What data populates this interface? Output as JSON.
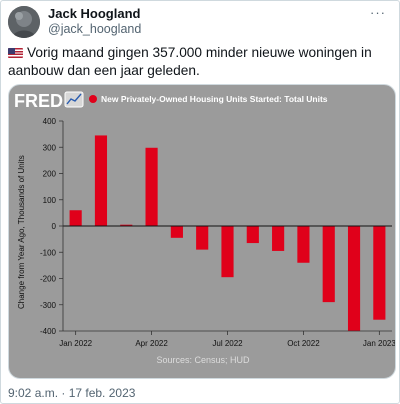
{
  "author": {
    "name": "Jack Hoogland",
    "handle": "@jack_hoogland",
    "avatar_icon": "profile-photo",
    "more_icon": "more-options-icon",
    "more_label": "···"
  },
  "tweet": {
    "flag_icon": "us-flag-icon",
    "text": "Vorig maand gingen 357.000 minder nieuwe woningen in aanbouw dan een jaar geleden."
  },
  "timestamp": "9:02 a.m. · 17 feb. 2023",
  "colors": {
    "chart_background": "#9b9b9b",
    "bar": "#e0001a",
    "fred_text": "#ffffff"
  },
  "chart_data": {
    "type": "bar",
    "brand": "FRED",
    "title": "New Privately-Owned Housing Units Started: Total Units",
    "ylabel": "Change from Year Ago, Thousands of Units",
    "xlabel": "",
    "source": "Sources: Census; HUD",
    "ylim": [
      -400,
      400
    ],
    "yticks": [
      400,
      300,
      200,
      100,
      0,
      -100,
      -200,
      -300,
      -400
    ],
    "categories": [
      "Jan 2022",
      "Feb 2022",
      "Mar 2022",
      "Apr 2022",
      "May 2022",
      "Jun 2022",
      "Jul 2022",
      "Aug 2022",
      "Sep 2022",
      "Oct 2022",
      "Nov 2022",
      "Dec 2022",
      "Jan 2023"
    ],
    "xtick_labels": [
      "Jan 2022",
      "Apr 2022",
      "Jul 2022",
      "Oct 2022",
      "Jan 2023"
    ],
    "xtick_indices": [
      0,
      3,
      6,
      9,
      12
    ],
    "values": [
      60,
      345,
      5,
      298,
      -45,
      -90,
      -195,
      -65,
      -95,
      -140,
      -290,
      -400,
      -357
    ],
    "series": [
      {
        "name": "New Privately-Owned Housing Units Started: Total Units",
        "values": [
          60,
          345,
          5,
          298,
          -45,
          -90,
          -195,
          -65,
          -95,
          -140,
          -290,
          -400,
          -357
        ]
      }
    ],
    "grid": false,
    "legend": "top"
  }
}
